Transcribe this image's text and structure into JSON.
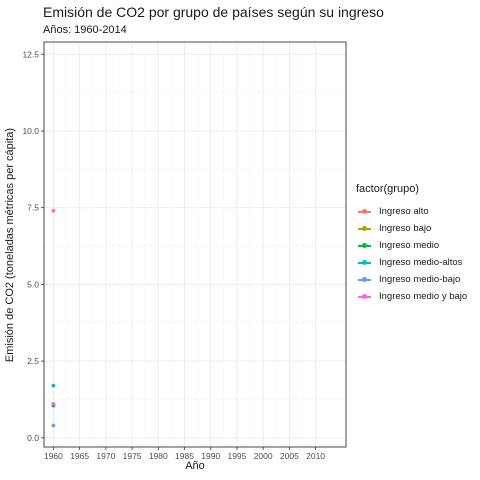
{
  "chart_data": {
    "type": "scatter",
    "title": "Emisión de CO2 por grupo de países según su ingreso",
    "subtitle": "Años: 1960-2014",
    "xlabel": "Año",
    "ylabel": "Emisión de CO2 (toneladas métricas per cápita)",
    "xlim": [
      1958.2,
      2015.8
    ],
    "ylim": [
      -0.3,
      12.9
    ],
    "x_ticks": [
      1960,
      1965,
      1970,
      1975,
      1980,
      1985,
      1990,
      1995,
      2000,
      2005,
      2010
    ],
    "y_ticks": [
      0.0,
      2.5,
      5.0,
      7.5,
      10.0,
      12.5
    ],
    "y_tick_labels": [
      "0.0",
      "2.5",
      "5.0",
      "7.5",
      "10.0",
      "12.5"
    ],
    "grid": true,
    "legend_position": "right",
    "legend_title": "factor(grupo)",
    "series": [
      {
        "name": "Ingreso alto",
        "color": "#F8766D",
        "x": [
          1960
        ],
        "y": [
          7.4
        ]
      },
      {
        "name": "Ingreso bajo",
        "color": "#B79F00",
        "x": [
          1960
        ],
        "y": [
          1.1
        ]
      },
      {
        "name": "Ingreso medio",
        "color": "#00BA38",
        "x": [
          1960
        ],
        "y": [
          1.05
        ]
      },
      {
        "name": "Ingreso medio-altos",
        "color": "#00BFC4",
        "x": [
          1960
        ],
        "y": [
          1.7
        ]
      },
      {
        "name": "Ingreso medio-bajo",
        "color": "#619CFF",
        "x": [
          1960
        ],
        "y": [
          0.4
        ]
      },
      {
        "name": "Ingreso medio y bajo",
        "color": "#F564E3",
        "x": [
          1960
        ],
        "y": [
          1.1
        ]
      }
    ]
  }
}
